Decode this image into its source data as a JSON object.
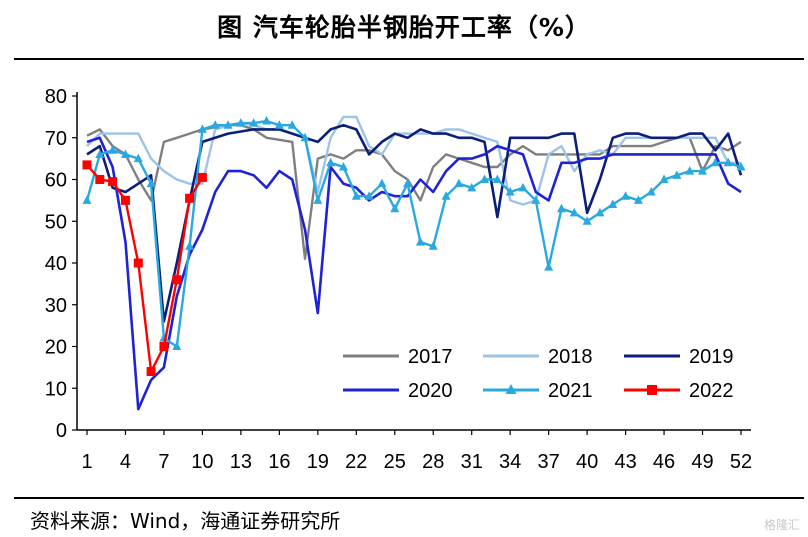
{
  "title": "图  汽车轮胎半钢胎开工率（%）",
  "source": "资料来源：Wind，海通证券研究所",
  "watermark": "格隆汇",
  "chart_data": {
    "type": "line",
    "title": "图  汽车轮胎半钢胎开工率（%）",
    "xlabel": "",
    "ylabel": "",
    "ylim": [
      0,
      80
    ],
    "yticks": [
      0,
      10,
      20,
      30,
      40,
      50,
      60,
      70,
      80
    ],
    "xlim": [
      1,
      52
    ],
    "xticks": [
      1,
      4,
      7,
      10,
      13,
      16,
      19,
      22,
      25,
      28,
      31,
      34,
      37,
      40,
      43,
      46,
      49,
      52
    ],
    "grid": false,
    "legend": "bottom-right",
    "series": [
      {
        "name": "2017",
        "color": "#7f7f7f",
        "marker": "none",
        "x": [
          1,
          2,
          3,
          4,
          5,
          6,
          7,
          8,
          9,
          10,
          11,
          12,
          13,
          14,
          15,
          16,
          17,
          18,
          19,
          20,
          21,
          22,
          23,
          24,
          25,
          26,
          27,
          28,
          29,
          30,
          31,
          32,
          33,
          34,
          35,
          36,
          37,
          38,
          39,
          40,
          41,
          42,
          43,
          44,
          45,
          46,
          47,
          48,
          49,
          50,
          51,
          52
        ],
        "values": [
          70.5,
          72,
          68,
          66,
          60,
          55,
          69,
          70,
          71,
          72,
          72.5,
          73,
          73,
          72,
          70,
          69.5,
          69,
          41,
          65,
          66,
          65,
          67,
          67,
          66,
          62,
          60,
          55,
          63,
          66,
          65,
          64,
          63,
          63,
          66,
          68,
          66,
          66,
          66,
          66,
          66,
          66,
          68,
          68,
          68,
          68,
          69,
          70,
          70,
          62,
          68,
          67,
          69
        ]
      },
      {
        "name": "2018",
        "color": "#9dc3e6",
        "marker": "none",
        "x": [
          1,
          2,
          3,
          4,
          5,
          6,
          7,
          8,
          9,
          10,
          11,
          12,
          13,
          14,
          15,
          16,
          17,
          18,
          19,
          20,
          21,
          22,
          23,
          24,
          25,
          26,
          27,
          28,
          29,
          30,
          31,
          32,
          33,
          34,
          35,
          36,
          37,
          38,
          39,
          40,
          41,
          42,
          43,
          44,
          45,
          46,
          47,
          48,
          49,
          50,
          51,
          52
        ],
        "values": [
          68,
          71,
          71,
          71,
          71,
          65,
          62,
          60,
          59,
          59,
          72,
          73,
          73.5,
          73,
          72,
          72,
          71,
          70,
          57,
          70,
          75,
          75,
          68,
          66,
          71,
          71,
          71,
          71,
          72,
          72,
          71,
          70,
          69,
          55,
          54,
          55,
          66,
          68,
          62,
          66,
          67,
          66,
          70,
          70,
          70,
          70,
          70,
          70,
          70,
          70,
          64,
          64
        ]
      },
      {
        "name": "2019",
        "color": "#0b1f7a",
        "marker": "none",
        "x": [
          1,
          2,
          3,
          4,
          5,
          6,
          7,
          8,
          9,
          10,
          11,
          12,
          13,
          14,
          15,
          16,
          17,
          18,
          19,
          20,
          21,
          22,
          23,
          24,
          25,
          26,
          27,
          28,
          29,
          30,
          31,
          32,
          33,
          34,
          35,
          36,
          37,
          38,
          39,
          40,
          41,
          42,
          43,
          44,
          45,
          46,
          47,
          48,
          49,
          50,
          51,
          52
        ],
        "values": [
          66,
          68,
          58,
          57,
          59,
          61,
          26,
          40,
          55,
          69,
          70,
          71,
          71.5,
          72,
          72,
          72,
          71,
          70,
          69,
          72,
          73,
          72,
          66,
          69,
          71,
          70,
          72,
          71,
          71,
          70,
          70,
          69,
          51,
          70,
          70,
          70,
          70,
          71,
          71,
          52,
          60,
          70,
          71,
          71,
          70,
          70,
          70,
          71,
          71,
          67,
          71,
          61
        ]
      },
      {
        "name": "2020",
        "color": "#1f23d6",
        "marker": "none",
        "x": [
          1,
          2,
          3,
          4,
          5,
          6,
          7,
          8,
          9,
          10,
          11,
          12,
          13,
          14,
          15,
          16,
          17,
          18,
          19,
          20,
          21,
          22,
          23,
          24,
          25,
          26,
          27,
          28,
          29,
          30,
          31,
          32,
          33,
          34,
          35,
          36,
          37,
          38,
          39,
          40,
          41,
          42,
          43,
          44,
          45,
          46,
          47,
          48,
          49,
          50,
          51,
          52
        ],
        "values": [
          69,
          70,
          63,
          45,
          5,
          12,
          15,
          32,
          42,
          48,
          57,
          62,
          62,
          61,
          58,
          62,
          60,
          48,
          28,
          63,
          59,
          58,
          55,
          57,
          56,
          56,
          60,
          57,
          62,
          65,
          65,
          66,
          68,
          67,
          66,
          57,
          55,
          64,
          64,
          65,
          65,
          66,
          66,
          66,
          66,
          66,
          66,
          66,
          66,
          66,
          59,
          57
        ]
      },
      {
        "name": "2021",
        "color": "#29a9e0",
        "marker": "triangle",
        "x": [
          1,
          2,
          3,
          4,
          5,
          6,
          7,
          8,
          9,
          10,
          11,
          12,
          13,
          14,
          15,
          16,
          17,
          18,
          19,
          20,
          21,
          22,
          23,
          24,
          25,
          26,
          27,
          28,
          29,
          30,
          31,
          32,
          33,
          34,
          35,
          36,
          37,
          38,
          39,
          40,
          41,
          42,
          43,
          44,
          45,
          46,
          47,
          48,
          49,
          50,
          51,
          52
        ],
        "values": [
          55,
          66,
          67,
          66,
          65,
          59,
          22,
          20,
          44,
          72,
          73,
          73,
          73.5,
          73.5,
          74,
          73,
          73,
          70,
          55,
          64,
          63,
          56,
          56,
          59,
          53,
          59,
          45,
          44,
          56,
          59,
          58,
          60,
          60,
          57,
          58,
          55,
          39,
          53,
          52,
          50,
          52,
          54,
          56,
          55,
          57,
          60,
          61,
          62,
          62,
          64,
          64,
          63
        ]
      },
      {
        "name": "2022",
        "color": "#ff0000",
        "marker": "square",
        "x": [
          1,
          2,
          3,
          4,
          5,
          6,
          7,
          8,
          9,
          10
        ],
        "values": [
          63.5,
          60,
          59.5,
          55,
          40,
          14,
          20,
          36,
          55.5,
          60.5
        ]
      }
    ]
  }
}
